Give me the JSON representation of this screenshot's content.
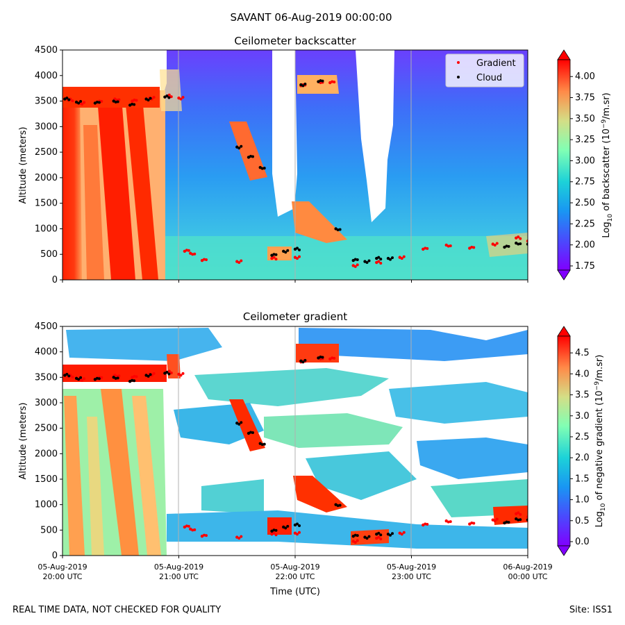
{
  "figure": {
    "suptitle": "SAVANT 06-Aug-2019 00:00:00",
    "footer_left": "REAL TIME DATA, NOT CHECKED FOR QUALITY",
    "footer_right": "Site: ISS1"
  },
  "chart_data": [
    {
      "type": "heatmap",
      "title": "Ceilometer backscatter",
      "xlabel": "",
      "ylabel": "Altitude (meters)",
      "xlim": [
        "05-Aug-2019 20:00 UTC",
        "06-Aug-2019 00:00 UTC"
      ],
      "ylim": [
        0,
        4500
      ],
      "yticks": [
        0,
        500,
        1000,
        1500,
        2000,
        2500,
        3000,
        3500,
        4000,
        4500
      ],
      "grid": "vertical lines at hourly ticks",
      "legend": {
        "placement": "top-right",
        "entries": [
          {
            "label": "Gradient",
            "color": "#ff0000",
            "marker": "dot"
          },
          {
            "label": "Cloud",
            "color": "#000000",
            "marker": "dot"
          }
        ]
      },
      "colorbar": {
        "label_prefix": "Log",
        "label_sub": "10",
        "label_suffix": " of backscatter (10",
        "label_sup": "−9",
        "label_end": "/m.sr)",
        "ticks": [
          "1.75",
          "2.00",
          "2.25",
          "2.50",
          "2.75",
          "3.00",
          "3.25",
          "3.50",
          "3.75",
          "4.00"
        ],
        "range": [
          1.7,
          4.2
        ],
        "colormap": "rainbow"
      },
      "series": [
        {
          "name": "Gradient",
          "color": "#ff0000",
          "points": [
            [
              0.05,
              3520
            ],
            [
              0.15,
              3460
            ],
            [
              0.3,
              3480
            ],
            [
              0.45,
              3540
            ],
            [
              0.6,
              3500
            ],
            [
              0.75,
              3560
            ],
            [
              0.9,
              3600
            ],
            [
              1.0,
              3560
            ],
            [
              1.05,
              560
            ],
            [
              1.1,
              520
            ],
            [
              1.2,
              380
            ],
            [
              1.5,
              360
            ],
            [
              1.8,
              420
            ],
            [
              2.0,
              440
            ],
            [
              2.05,
              3800
            ],
            [
              2.2,
              3880
            ],
            [
              2.3,
              3860
            ],
            [
              2.5,
              280
            ],
            [
              2.7,
              340
            ],
            [
              2.9,
              440
            ],
            [
              3.1,
              600
            ],
            [
              3.3,
              680
            ],
            [
              3.5,
              620
            ],
            [
              3.7,
              700
            ],
            [
              3.9,
              820
            ],
            [
              4.0,
              760
            ]
          ]
        },
        {
          "name": "Cloud",
          "color": "#000000",
          "points": [
            [
              0.02,
              3540
            ],
            [
              0.12,
              3480
            ],
            [
              0.28,
              3460
            ],
            [
              0.44,
              3500
            ],
            [
              0.58,
              3420
            ],
            [
              0.72,
              3540
            ],
            [
              0.88,
              3580
            ],
            [
              1.5,
              2600
            ],
            [
              1.6,
              2400
            ],
            [
              1.7,
              2200
            ],
            [
              1.8,
              480
            ],
            [
              1.9,
              560
            ],
            [
              2.0,
              600
            ],
            [
              2.05,
              3820
            ],
            [
              2.2,
              3880
            ],
            [
              2.35,
              1000
            ],
            [
              2.5,
              380
            ],
            [
              2.6,
              360
            ],
            [
              2.7,
              420
            ],
            [
              2.8,
              420
            ],
            [
              3.8,
              640
            ],
            [
              3.9,
              720
            ],
            [
              4.0,
              700
            ]
          ]
        }
      ]
    },
    {
      "type": "heatmap",
      "title": "Ceilometer gradient",
      "xlabel": "Time (UTC)",
      "ylabel": "Altitude (meters)",
      "xlim": [
        "05-Aug-2019 20:00 UTC",
        "06-Aug-2019 00:00 UTC"
      ],
      "ylim": [
        0,
        4500
      ],
      "yticks": [
        0,
        500,
        1000,
        1500,
        2000,
        2500,
        3000,
        3500,
        4000,
        4500
      ],
      "xticks": [
        {
          "date": "05-Aug-2019",
          "time": "20:00 UTC"
        },
        {
          "date": "05-Aug-2019",
          "time": "21:00 UTC"
        },
        {
          "date": "05-Aug-2019",
          "time": "22:00 UTC"
        },
        {
          "date": "05-Aug-2019",
          "time": "23:00 UTC"
        },
        {
          "date": "06-Aug-2019",
          "time": "00:00 UTC"
        }
      ],
      "grid": "vertical lines at hourly ticks",
      "colorbar": {
        "label_prefix": "Log",
        "label_sub": "10",
        "label_suffix": " of negative gradient (10",
        "label_sup": "−9",
        "label_end": "/m.sr)",
        "ticks": [
          "0.0",
          "0.5",
          "1.0",
          "1.5",
          "2.0",
          "2.5",
          "3.0",
          "3.5",
          "4.0",
          "4.5"
        ],
        "range": [
          -0.1,
          4.9
        ],
        "colormap": "rainbow"
      }
    }
  ]
}
